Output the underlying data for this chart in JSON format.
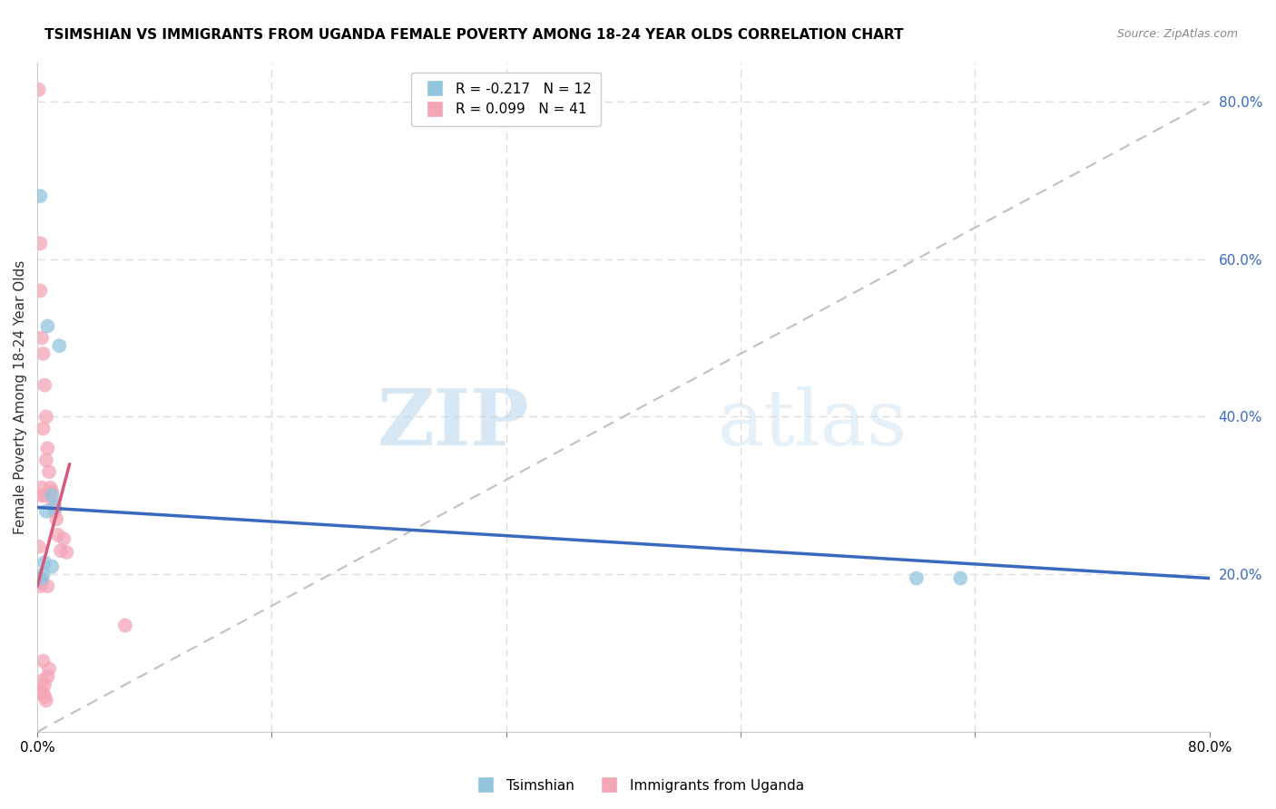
{
  "title": "TSIMSHIAN VS IMMIGRANTS FROM UGANDA FEMALE POVERTY AMONG 18-24 YEAR OLDS CORRELATION CHART",
  "source": "Source: ZipAtlas.com",
  "ylabel": "Female Poverty Among 18-24 Year Olds",
  "xlim": [
    0,
    0.8
  ],
  "ylim": [
    0,
    0.85
  ],
  "right_yticks": [
    0.2,
    0.4,
    0.6,
    0.8
  ],
  "right_yticklabels": [
    "20.0%",
    "40.0%",
    "60.0%",
    "80.0%"
  ],
  "tsimshian": {
    "R": -0.217,
    "N": 12,
    "color": "#92c5de",
    "label": "Tsimshian",
    "x": [
      0.003,
      0.004,
      0.005,
      0.006,
      0.007,
      0.01,
      0.01,
      0.012,
      0.015,
      0.6,
      0.63,
      0.002
    ],
    "y": [
      0.195,
      0.2,
      0.215,
      0.28,
      0.515,
      0.3,
      0.21,
      0.285,
      0.49,
      0.195,
      0.195,
      0.68
    ]
  },
  "uganda": {
    "R": 0.099,
    "N": 41,
    "color": "#f4a6b8",
    "label": "Immigrants from Uganda",
    "x": [
      0.001,
      0.001,
      0.001,
      0.001,
      0.002,
      0.002,
      0.002,
      0.002,
      0.002,
      0.003,
      0.003,
      0.003,
      0.003,
      0.004,
      0.004,
      0.004,
      0.004,
      0.005,
      0.005,
      0.005,
      0.006,
      0.006,
      0.006,
      0.007,
      0.007,
      0.008,
      0.008,
      0.009,
      0.01,
      0.011,
      0.012,
      0.013,
      0.014,
      0.016,
      0.018,
      0.02,
      0.06,
      0.002,
      0.003,
      0.005,
      0.007
    ],
    "y": [
      0.815,
      0.235,
      0.195,
      0.19,
      0.62,
      0.56,
      0.195,
      0.19,
      0.185,
      0.5,
      0.31,
      0.3,
      0.19,
      0.48,
      0.385,
      0.09,
      0.05,
      0.44,
      0.3,
      0.06,
      0.4,
      0.345,
      0.04,
      0.36,
      0.185,
      0.33,
      0.08,
      0.31,
      0.305,
      0.29,
      0.28,
      0.27,
      0.25,
      0.23,
      0.245,
      0.228,
      0.135,
      0.05,
      0.065,
      0.045,
      0.07
    ]
  },
  "watermark_zip": "ZIP",
  "watermark_atlas": "atlas",
  "grid_color": "#dddddd",
  "ref_line_color": "#c0c0c0",
  "tsimshian_line_color": "#3a6abf",
  "uganda_line_color": "#d45c7a",
  "tsimshian_line_start_x": 0.0,
  "tsimshian_line_end_x": 0.8,
  "tsimshian_line_start_y": 0.285,
  "tsimshian_line_end_y": 0.195,
  "uganda_line_start_x": 0.0,
  "uganda_line_end_x": 0.022,
  "uganda_line_start_y": 0.185,
  "uganda_line_end_y": 0.34
}
